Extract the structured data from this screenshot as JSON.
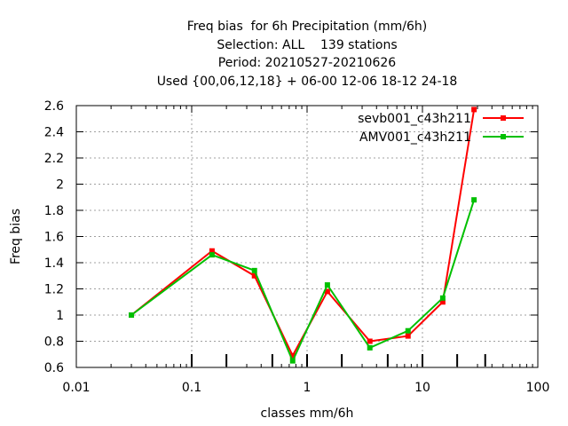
{
  "chart_data": {
    "type": "line",
    "title_lines": [
      "Freq bias  for 6h Precipitation (mm/6h)",
      "Selection: ALL    139 stations",
      "Period: 20210527-20210626",
      "Used {00,06,12,18} + 06-00 12-06 18-12 24-18"
    ],
    "xlabel": "classes mm/6h",
    "ylabel": "Freq bias",
    "xscale": "log",
    "xlim": [
      0.01,
      100
    ],
    "ylim": [
      0.6,
      2.6
    ],
    "xticks": [
      0.01,
      0.1,
      1,
      10,
      100
    ],
    "xtick_labels": [
      "0.01",
      "0.1",
      "1",
      "10",
      "100"
    ],
    "yticks": [
      0.6,
      0.8,
      1,
      1.2,
      1.4,
      1.6,
      1.8,
      2,
      2.2,
      2.4,
      2.6
    ],
    "ytick_labels": [
      "0.6",
      "0.8",
      "1",
      "1.2",
      "1.4",
      "1.6",
      "1.8",
      "2",
      "2.2",
      "2.4",
      "2.6"
    ],
    "class_markers": [
      0.1,
      0.2,
      0.5,
      1,
      2,
      5,
      10,
      20,
      35
    ],
    "grid": true,
    "legend_position": "top-right",
    "series": [
      {
        "name": "sevb001_c43h211",
        "color": "#ff0000",
        "x": [
          0.03,
          0.15,
          0.35,
          0.75,
          1.5,
          3.5,
          7.5,
          15,
          28
        ],
        "y": [
          1.0,
          1.49,
          1.3,
          0.69,
          1.18,
          0.8,
          0.84,
          1.1,
          2.57
        ]
      },
      {
        "name": "AMV001_c43h211",
        "color": "#00c000",
        "x": [
          0.03,
          0.15,
          0.35,
          0.75,
          1.5,
          3.5,
          7.5,
          15,
          28
        ],
        "y": [
          1.0,
          1.46,
          1.34,
          0.65,
          1.23,
          0.75,
          0.88,
          1.13,
          1.88
        ]
      }
    ]
  }
}
